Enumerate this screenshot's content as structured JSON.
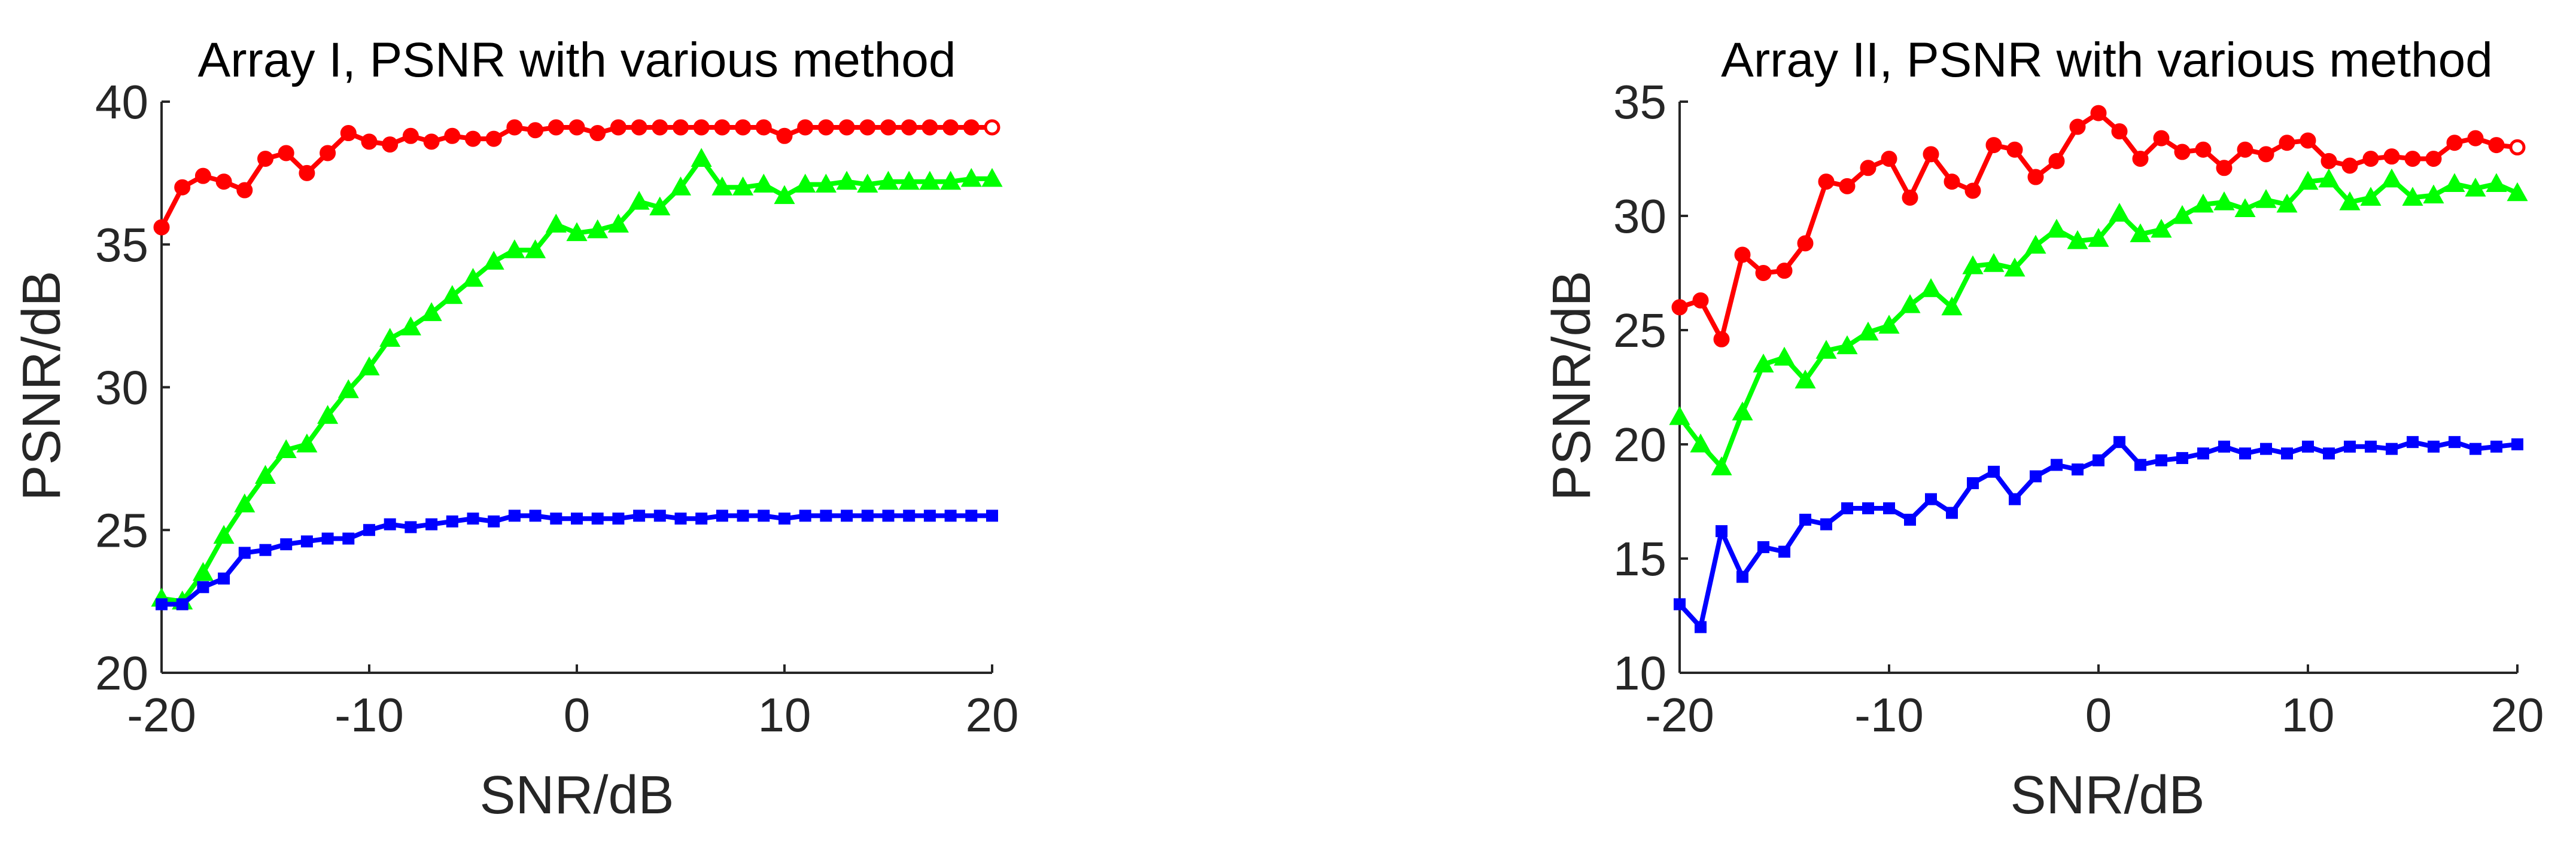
{
  "chart_data": [
    {
      "type": "line",
      "title": "Array I, PSNR with various method",
      "xlabel": "SNR/dB",
      "ylabel": "PSNR/dB",
      "xlim": [
        -20,
        20
      ],
      "ylim": [
        20,
        40
      ],
      "xticks": [
        "-20",
        "-10",
        "0",
        "10",
        "20"
      ],
      "yticks": [
        "20",
        "25",
        "30",
        "35",
        "40"
      ],
      "grid": false,
      "legend": "none",
      "x": [
        -20,
        -19,
        -18,
        -17,
        -16,
        -15,
        -14,
        -13,
        -12,
        -11,
        -10,
        -9,
        -8,
        -7,
        -6,
        -5,
        -4,
        -3,
        -2,
        -1,
        0,
        1,
        2,
        3,
        4,
        5,
        6,
        7,
        8,
        9,
        10,
        11,
        12,
        13,
        14,
        15,
        16,
        17,
        18,
        19,
        20
      ],
      "series": [
        {
          "color": "#ff0000",
          "marker": "circle",
          "values": [
            35.6,
            37.0,
            37.4,
            37.2,
            36.9,
            38.0,
            38.2,
            37.5,
            38.2,
            38.9,
            38.6,
            38.5,
            38.8,
            38.6,
            38.8,
            38.7,
            38.7,
            39.1,
            39.0,
            39.1,
            39.1,
            38.9,
            39.1,
            39.1,
            39.1,
            39.1,
            39.1,
            39.1,
            39.1,
            39.1,
            38.8,
            39.1,
            39.1,
            39.1,
            39.1,
            39.1,
            39.1,
            39.1,
            39.1,
            39.1,
            39.1
          ]
        },
        {
          "color": "#00ff00",
          "marker": "triangle",
          "values": [
            22.6,
            22.5,
            23.5,
            24.8,
            25.9,
            26.9,
            27.8,
            28.0,
            29.0,
            29.9,
            30.7,
            31.7,
            32.1,
            32.6,
            33.2,
            33.8,
            34.4,
            34.8,
            34.8,
            35.7,
            35.4,
            35.5,
            35.7,
            36.5,
            36.3,
            37.0,
            38.0,
            37.0,
            37.0,
            37.1,
            36.7,
            37.1,
            37.1,
            37.2,
            37.1,
            37.2,
            37.2,
            37.2,
            37.2,
            37.3,
            37.3
          ]
        },
        {
          "color": "#0000ff",
          "marker": "square",
          "values": [
            22.4,
            22.4,
            23.0,
            23.3,
            24.2,
            24.3,
            24.5,
            24.6,
            24.7,
            24.7,
            25.0,
            25.2,
            25.1,
            25.2,
            25.3,
            25.4,
            25.3,
            25.5,
            25.5,
            25.4,
            25.4,
            25.4,
            25.4,
            25.5,
            25.5,
            25.4,
            25.4,
            25.5,
            25.5,
            25.5,
            25.4,
            25.5,
            25.5,
            25.5,
            25.5,
            25.5,
            25.5,
            25.5,
            25.5,
            25.5,
            25.5
          ]
        }
      ]
    },
    {
      "type": "line",
      "title": "Array II, PSNR with various method",
      "xlabel": "SNR/dB",
      "ylabel": "PSNR/dB",
      "xlim": [
        -20,
        20
      ],
      "ylim": [
        10,
        35
      ],
      "xticks": [
        "-20",
        "-10",
        "0",
        "10",
        "20"
      ],
      "yticks": [
        "10",
        "15",
        "20",
        "25",
        "30",
        "35"
      ],
      "grid": false,
      "legend": "none",
      "x": [
        -20,
        -19,
        -18,
        -17,
        -16,
        -15,
        -14,
        -13,
        -12,
        -11,
        -10,
        -9,
        -8,
        -7,
        -6,
        -5,
        -4,
        -3,
        -2,
        -1,
        0,
        1,
        2,
        3,
        4,
        5,
        6,
        7,
        8,
        9,
        10,
        11,
        12,
        13,
        14,
        15,
        16,
        17,
        18,
        19,
        20
      ],
      "series": [
        {
          "color": "#ff0000",
          "marker": "circle",
          "values": [
            26.0,
            26.3,
            24.6,
            28.3,
            27.5,
            27.6,
            28.8,
            31.5,
            31.3,
            32.1,
            32.5,
            30.8,
            32.7,
            31.5,
            31.1,
            33.1,
            32.9,
            31.7,
            32.4,
            33.9,
            34.5,
            33.7,
            32.5,
            33.4,
            32.8,
            32.9,
            32.1,
            32.9,
            32.7,
            33.2,
            33.3,
            32.4,
            32.2,
            32.5,
            32.6,
            32.5,
            32.5,
            33.2,
            33.4,
            33.1,
            33.0
          ]
        },
        {
          "color": "#00ff00",
          "marker": "triangle",
          "values": [
            21.2,
            20.0,
            19.0,
            21.4,
            23.5,
            23.8,
            22.8,
            24.1,
            24.3,
            24.9,
            25.2,
            26.1,
            26.8,
            26.0,
            27.8,
            27.9,
            27.7,
            28.7,
            29.4,
            28.9,
            29.0,
            30.1,
            29.2,
            29.4,
            30.0,
            30.5,
            30.6,
            30.3,
            30.7,
            30.5,
            31.5,
            31.6,
            30.6,
            30.8,
            31.6,
            30.8,
            30.9,
            31.4,
            31.2,
            31.4,
            31.0
          ]
        },
        {
          "color": "#0000ff",
          "marker": "square",
          "values": [
            13.0,
            12.0,
            16.2,
            14.2,
            15.5,
            15.3,
            16.7,
            16.5,
            17.2,
            17.2,
            17.2,
            16.7,
            17.6,
            17.0,
            18.3,
            18.8,
            17.6,
            18.6,
            19.1,
            18.9,
            19.3,
            20.1,
            19.1,
            19.3,
            19.4,
            19.6,
            19.9,
            19.6,
            19.8,
            19.6,
            19.9,
            19.6,
            19.9,
            19.9,
            19.8,
            20.1,
            19.9,
            20.1,
            19.8,
            19.9,
            20.0
          ]
        }
      ]
    }
  ]
}
